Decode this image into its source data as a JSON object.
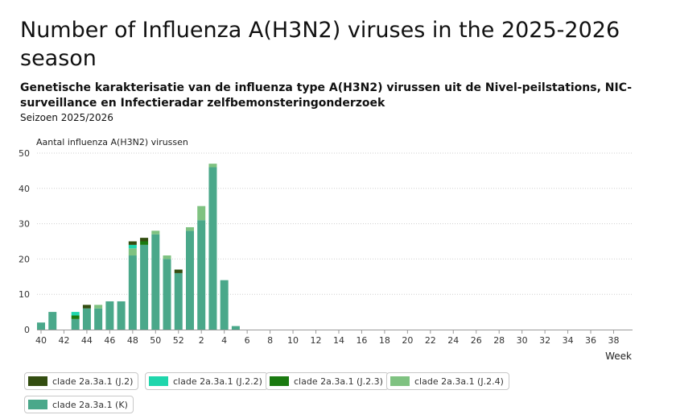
{
  "page": {
    "title": "Number of Influenza A(H3N2) viruses in the 2025-2026 season",
    "subtitle": "Genetische karakterisatie van de influenza type A(H3N2) virussen uit de Nivel-peilstations, NIC-surveillance en Infectieradar zelfbemonsteringonderzoek",
    "season": "Seizoen 2025/2026"
  },
  "chart_data": {
    "type": "bar",
    "stacked": true,
    "title": "Number of Influenza A(H3N2) viruses in the 2025-2026 season",
    "subtitle": "Genetische karakterisatie van de influenza type A(H3N2) virussen uit de Nivel-peilstations, NIC-surveillance en Infectieradar zelfbemonsteringonderzoek",
    "ylabel": "Aantal influenza A(H3N2) virussen",
    "xlabel": "Week",
    "ylim": [
      0,
      50
    ],
    "yticks": [
      0,
      10,
      20,
      30,
      40,
      50
    ],
    "grid": true,
    "legend_position": "bottom",
    "categories": [
      "40",
      "41",
      "42",
      "43",
      "44",
      "45",
      "46",
      "47",
      "48",
      "49",
      "50",
      "51",
      "52",
      "1",
      "2",
      "3",
      "4",
      "5",
      "6",
      "7",
      "8",
      "9",
      "10",
      "11",
      "12",
      "13",
      "14",
      "15",
      "16",
      "17",
      "18",
      "19",
      "20",
      "21",
      "22",
      "23",
      "24",
      "25",
      "26",
      "27",
      "28",
      "29",
      "30",
      "31",
      "32",
      "33",
      "34",
      "35",
      "36",
      "37",
      "38",
      "39"
    ],
    "xtick_labels": [
      "40",
      "42",
      "44",
      "46",
      "48",
      "50",
      "52",
      "2",
      "4",
      "6",
      "8",
      "10",
      "12",
      "14",
      "16",
      "18",
      "20",
      "22",
      "24",
      "26",
      "28",
      "30",
      "32",
      "34",
      "36",
      "38"
    ],
    "series": [
      {
        "name": "clade 2a.3a.1 (K)",
        "color": "#4aa88a",
        "values": [
          2,
          5,
          0,
          3,
          6,
          6,
          8,
          8,
          21,
          24,
          27,
          20,
          16,
          28,
          31,
          46,
          14,
          1,
          0,
          0,
          0,
          0,
          0,
          0,
          0,
          0,
          0,
          0,
          0,
          0,
          0,
          0,
          0,
          0,
          0,
          0,
          0,
          0,
          0,
          0,
          0,
          0,
          0,
          0,
          0,
          0,
          0,
          0,
          0,
          0,
          0,
          0
        ]
      },
      {
        "name": "clade 2a.3a.1 (J.2.4)",
        "color": "#7fc281",
        "values": [
          0,
          0,
          0,
          0,
          0,
          1,
          0,
          0,
          2,
          0,
          1,
          1,
          0,
          1,
          4,
          1,
          0,
          0,
          0,
          0,
          0,
          0,
          0,
          0,
          0,
          0,
          0,
          0,
          0,
          0,
          0,
          0,
          0,
          0,
          0,
          0,
          0,
          0,
          0,
          0,
          0,
          0,
          0,
          0,
          0,
          0,
          0,
          0,
          0,
          0,
          0,
          0
        ]
      },
      {
        "name": "clade 2a.3a.1 (J.2.3)",
        "color": "#1a7a10",
        "values": [
          0,
          0,
          0,
          1,
          0,
          0,
          0,
          0,
          0,
          1,
          0,
          0,
          0,
          0,
          0,
          0,
          0,
          0,
          0,
          0,
          0,
          0,
          0,
          0,
          0,
          0,
          0,
          0,
          0,
          0,
          0,
          0,
          0,
          0,
          0,
          0,
          0,
          0,
          0,
          0,
          0,
          0,
          0,
          0,
          0,
          0,
          0,
          0,
          0,
          0,
          0,
          0
        ]
      },
      {
        "name": "clade 2a.3a.1 (J.2.2)",
        "color": "#1fd6ac",
        "values": [
          0,
          0,
          0,
          1,
          0,
          0,
          0,
          0,
          1,
          0,
          0,
          0,
          0,
          0,
          0,
          0,
          0,
          0,
          0,
          0,
          0,
          0,
          0,
          0,
          0,
          0,
          0,
          0,
          0,
          0,
          0,
          0,
          0,
          0,
          0,
          0,
          0,
          0,
          0,
          0,
          0,
          0,
          0,
          0,
          0,
          0,
          0,
          0,
          0,
          0,
          0,
          0
        ]
      },
      {
        "name": "clade 2a.3a.1 (J.2)",
        "color": "#334d10",
        "values": [
          0,
          0,
          0,
          0,
          1,
          0,
          0,
          0,
          1,
          1,
          0,
          0,
          1,
          0,
          0,
          0,
          0,
          0,
          0,
          0,
          0,
          0,
          0,
          0,
          0,
          0,
          0,
          0,
          0,
          0,
          0,
          0,
          0,
          0,
          0,
          0,
          0,
          0,
          0,
          0,
          0,
          0,
          0,
          0,
          0,
          0,
          0,
          0,
          0,
          0,
          0,
          0
        ]
      }
    ],
    "legend_order": [
      "clade 2a.3a.1 (J.2)",
      "clade 2a.3a.1 (J.2.2)",
      "clade 2a.3a.1 (J.2.3)",
      "clade 2a.3a.1 (J.2.4)",
      "clade 2a.3a.1 (K)"
    ]
  }
}
